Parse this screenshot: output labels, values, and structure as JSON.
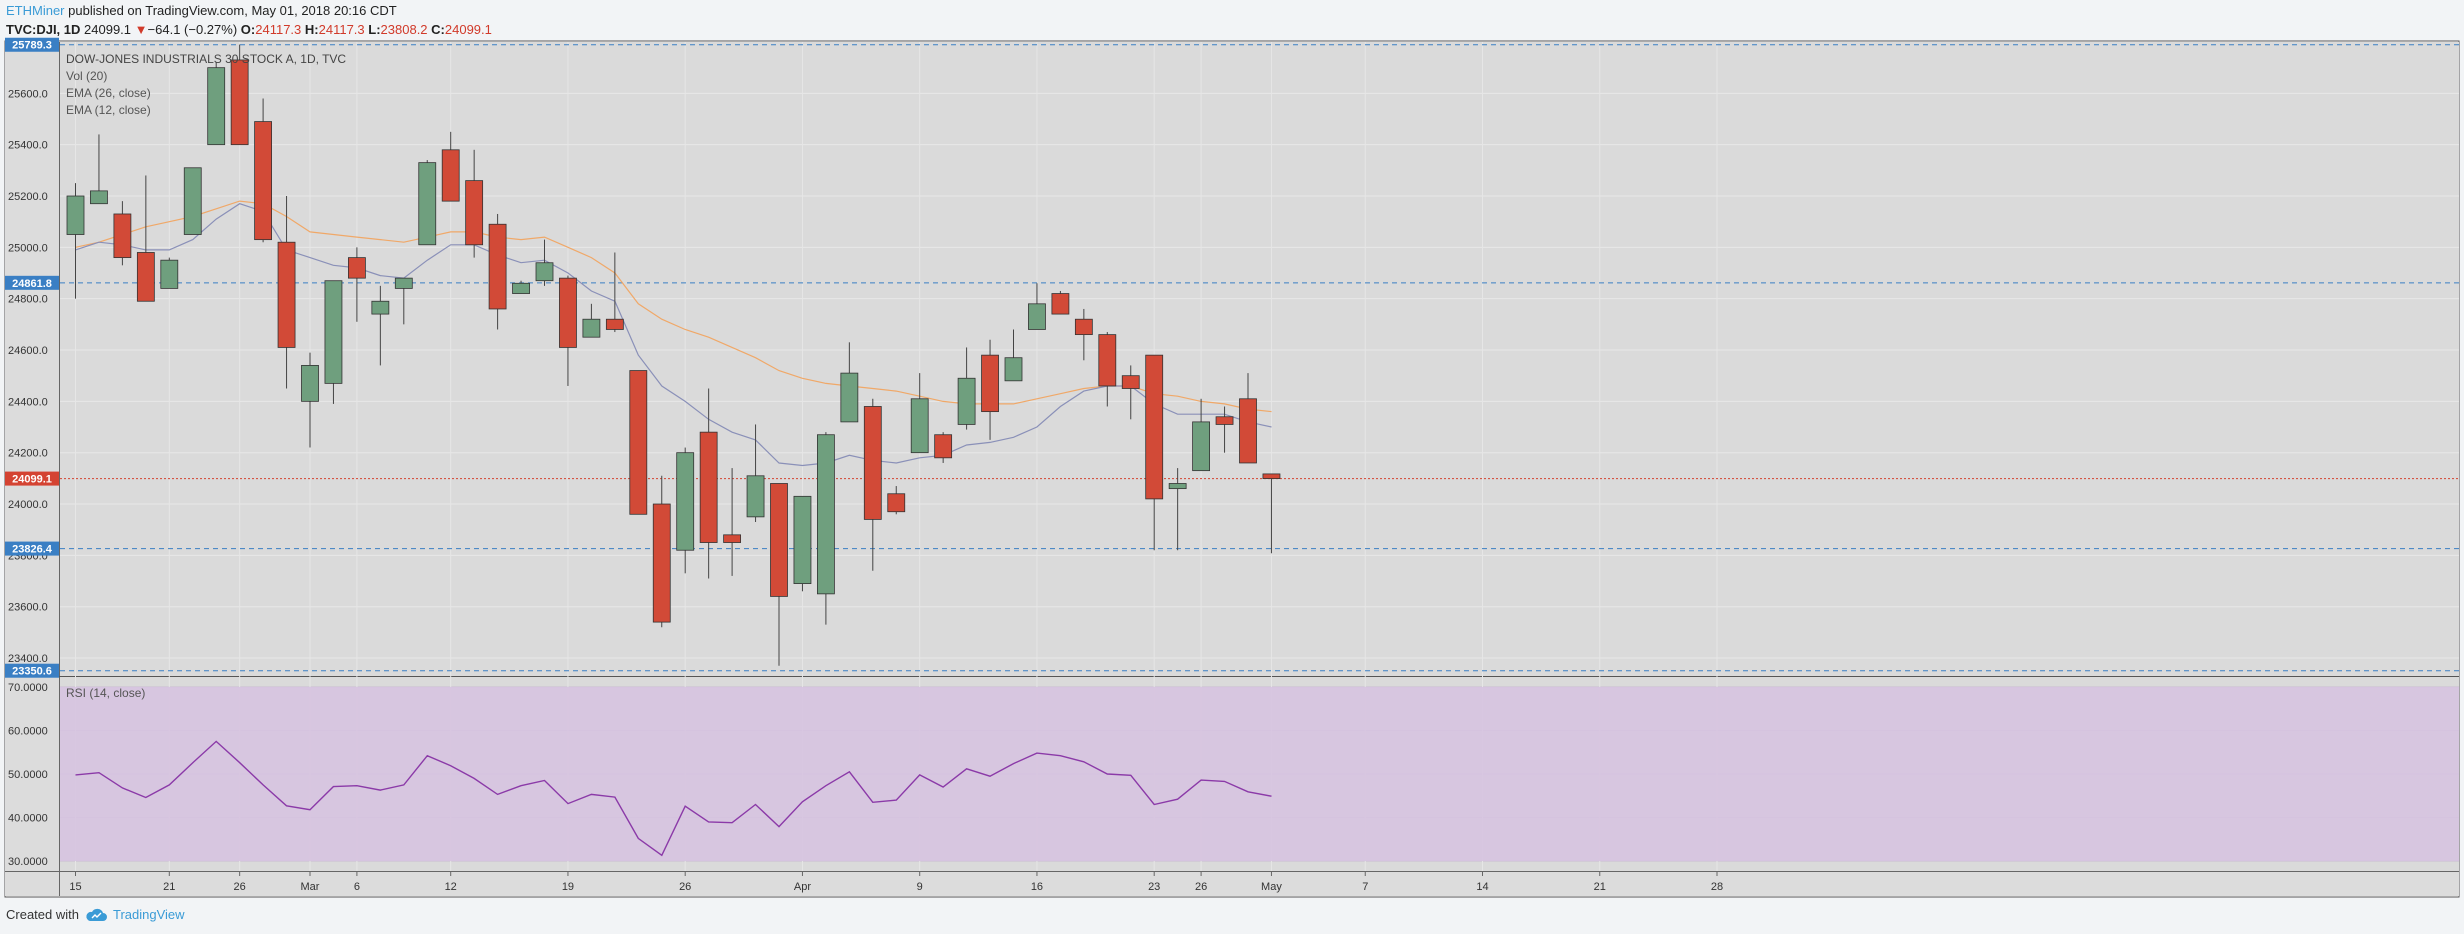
{
  "header": {
    "author": "ETHMiner",
    "published": "published on TradingView.com, May 01, 2018 20:16 CDT",
    "symbol": "TVC:DJI, 1D",
    "last": "24099.1",
    "arrow": "▼",
    "change": "−64.1 (−0.27%)",
    "o_label": "O:",
    "o_val": "24117.3",
    "h_label": "H:",
    "h_val": "24117.3",
    "l_label": "L:",
    "l_val": "23808.2",
    "c_label": "C:",
    "c_val": "24099.1"
  },
  "legend": {
    "title": "DOW-JONES INDUSTRIALS 30 STOCK A, 1D, TVC",
    "vol": "Vol (20)",
    "ema26": "EMA (26, close)",
    "ema12": "EMA (12, close)",
    "rsi": "RSI (14, close)"
  },
  "footer": {
    "created": "Created with",
    "brand": "TradingView"
  },
  "colors": {
    "up": "#6f9f7e",
    "down": "#d24a37",
    "ema26": "#f0a868",
    "ema12": "#8a90b8",
    "rsi_line": "#8b3aa8",
    "rsi_band": "#d6c3e0",
    "price_bg": "#dadada",
    "marker_blue": "#3a7fc4",
    "marker_red": "#d44332"
  },
  "chart_data": [
    {
      "type": "candlestick",
      "title": "DOW-JONES INDUSTRIALS 30 STOCK A, 1D, TVC",
      "ylim": [
        23330,
        25800
      ],
      "yticks": [
        "23400.0",
        "23600.0",
        "23800.0",
        "24000.0",
        "24200.0",
        "24400.0",
        "24600.0",
        "24800.0",
        "25000.0",
        "25200.0",
        "25400.0",
        "25600.0"
      ],
      "xticks": [
        "15",
        "21",
        "26",
        "Mar",
        "6",
        "12",
        "19",
        "26",
        "Apr",
        "9",
        "16",
        "23",
        "26",
        "May",
        "7",
        "14",
        "21",
        "28"
      ],
      "markers": [
        {
          "label": "25789.3",
          "value": 25789.3,
          "color": "blue"
        },
        {
          "label": "24861.8",
          "value": 24861.8,
          "color": "blue"
        },
        {
          "label": "24099.1",
          "value": 24099.1,
          "color": "red"
        },
        {
          "label": "23826.4",
          "value": 23826.4,
          "color": "blue"
        },
        {
          "label": "23350.6",
          "value": 23350.6,
          "color": "blue"
        }
      ],
      "candles": [
        {
          "o": 25050,
          "h": 25250,
          "l": 24800,
          "c": 25200
        },
        {
          "o": 25170,
          "h": 25440,
          "l": 25170,
          "c": 25220
        },
        {
          "o": 25130,
          "h": 25180,
          "l": 24930,
          "c": 24960
        },
        {
          "o": 24980,
          "h": 25280,
          "l": 24790,
          "c": 24790
        },
        {
          "o": 24840,
          "h": 24960,
          "l": 24840,
          "c": 24950
        },
        {
          "o": 25050,
          "h": 25310,
          "l": 25050,
          "c": 25310
        },
        {
          "o": 25400,
          "h": 25720,
          "l": 25400,
          "c": 25700
        },
        {
          "o": 25730,
          "h": 25790,
          "l": 25400,
          "c": 25400
        },
        {
          "o": 25490,
          "h": 25580,
          "l": 25020,
          "c": 25030
        },
        {
          "o": 25020,
          "h": 25200,
          "l": 24450,
          "c": 24610
        },
        {
          "o": 24400,
          "h": 24590,
          "l": 24220,
          "c": 24540
        },
        {
          "o": 24470,
          "h": 24870,
          "l": 24390,
          "c": 24870
        },
        {
          "o": 24960,
          "h": 25000,
          "l": 24710,
          "c": 24880
        },
        {
          "o": 24740,
          "h": 24850,
          "l": 24540,
          "c": 24790
        },
        {
          "o": 24840,
          "h": 24880,
          "l": 24700,
          "c": 24880
        },
        {
          "o": 25010,
          "h": 25340,
          "l": 25010,
          "c": 25330
        },
        {
          "o": 25380,
          "h": 25450,
          "l": 25180,
          "c": 25180
        },
        {
          "o": 25260,
          "h": 25380,
          "l": 24960,
          "c": 25010
        },
        {
          "o": 25090,
          "h": 25130,
          "l": 24680,
          "c": 24760
        },
        {
          "o": 24820,
          "h": 24870,
          "l": 24820,
          "c": 24860
        },
        {
          "o": 24870,
          "h": 25030,
          "l": 24850,
          "c": 24940
        },
        {
          "o": 24880,
          "h": 24890,
          "l": 24460,
          "c": 24610
        },
        {
          "o": 24650,
          "h": 24780,
          "l": 24650,
          "c": 24720
        },
        {
          "o": 24720,
          "h": 24980,
          "l": 24670,
          "c": 24680
        },
        {
          "o": 24520,
          "h": 24520,
          "l": 23960,
          "c": 23960
        },
        {
          "o": 24000,
          "h": 24110,
          "l": 23520,
          "c": 23540
        },
        {
          "o": 23820,
          "h": 24220,
          "l": 23730,
          "c": 24200
        },
        {
          "o": 24280,
          "h": 24450,
          "l": 23710,
          "c": 23850
        },
        {
          "o": 23880,
          "h": 24140,
          "l": 23720,
          "c": 23850
        },
        {
          "o": 23950,
          "h": 24310,
          "l": 23930,
          "c": 24110
        },
        {
          "o": 24080,
          "h": 24080,
          "l": 23370,
          "c": 23640
        },
        {
          "o": 23690,
          "h": 24030,
          "l": 23660,
          "c": 24030
        },
        {
          "o": 23650,
          "h": 24280,
          "l": 23530,
          "c": 24270
        },
        {
          "o": 24320,
          "h": 24630,
          "l": 24320,
          "c": 24510
        },
        {
          "o": 24380,
          "h": 24410,
          "l": 23740,
          "c": 23940
        },
        {
          "o": 24040,
          "h": 24070,
          "l": 23960,
          "c": 23970
        },
        {
          "o": 24200,
          "h": 24510,
          "l": 24200,
          "c": 24410
        },
        {
          "o": 24270,
          "h": 24280,
          "l": 24160,
          "c": 24180
        },
        {
          "o": 24310,
          "h": 24610,
          "l": 24290,
          "c": 24490
        },
        {
          "o": 24580,
          "h": 24640,
          "l": 24250,
          "c": 24360
        },
        {
          "o": 24480,
          "h": 24680,
          "l": 24480,
          "c": 24570
        },
        {
          "o": 24680,
          "h": 24860,
          "l": 24680,
          "c": 24780
        },
        {
          "o": 24820,
          "h": 24830,
          "l": 24740,
          "c": 24740
        },
        {
          "o": 24720,
          "h": 24760,
          "l": 24560,
          "c": 24660
        },
        {
          "o": 24660,
          "h": 24670,
          "l": 24380,
          "c": 24460
        },
        {
          "o": 24500,
          "h": 24540,
          "l": 24330,
          "c": 24450
        },
        {
          "o": 24580,
          "h": 24580,
          "l": 23820,
          "c": 24020
        },
        {
          "o": 24060,
          "h": 24140,
          "l": 23820,
          "c": 24080
        },
        {
          "o": 24130,
          "h": 24410,
          "l": 24130,
          "c": 24320
        },
        {
          "o": 24340,
          "h": 24380,
          "l": 24200,
          "c": 24310
        },
        {
          "o": 24410,
          "h": 24510,
          "l": 24160,
          "c": 24160
        },
        {
          "o": 24117.3,
          "h": 24117.3,
          "l": 23808.2,
          "c": 24099.1
        }
      ],
      "ema26": [
        25000,
        25020,
        25050,
        25080,
        25100,
        25120,
        25150,
        25180,
        25170,
        25120,
        25060,
        25050,
        25040,
        25030,
        25020,
        25040,
        25060,
        25060,
        25040,
        25030,
        25040,
        25000,
        24960,
        24900,
        24780,
        24720,
        24680,
        24650,
        24610,
        24570,
        24520,
        24490,
        24470,
        24460,
        24450,
        24440,
        24420,
        24400,
        24390,
        24390,
        24390,
        24410,
        24430,
        24450,
        24460,
        24460,
        24430,
        24420,
        24400,
        24390,
        24370,
        24360
      ],
      "ema12": [
        24990,
        25020,
        25010,
        24990,
        24990,
        25030,
        25110,
        25170,
        25140,
        24990,
        24960,
        24930,
        24920,
        24890,
        24880,
        24950,
        25010,
        25010,
        24970,
        24940,
        24950,
        24900,
        24830,
        24790,
        24580,
        24460,
        24400,
        24330,
        24280,
        24250,
        24160,
        24150,
        24160,
        24190,
        24170,
        24160,
        24180,
        24190,
        24230,
        24240,
        24260,
        24300,
        24380,
        24440,
        24460,
        24460,
        24390,
        24350,
        24350,
        24350,
        24320,
        24300
      ]
    },
    {
      "type": "line",
      "title": "RSI (14, close)",
      "ylim": [
        30,
        70
      ],
      "yticks": [
        "30.0000",
        "40.0000",
        "50.0000",
        "60.0000",
        "70.0000"
      ],
      "band": [
        30,
        70
      ],
      "values": [
        49.8,
        50.3,
        46.8,
        44.6,
        47.5,
        52.6,
        57.5,
        52.6,
        47.5,
        42.7,
        41.8,
        47.1,
        47.3,
        46.3,
        47.5,
        54.2,
        51.9,
        49.0,
        45.3,
        47.3,
        48.5,
        43.2,
        45.3,
        44.7,
        35.2,
        31.3,
        42.6,
        39.0,
        38.8,
        43.0,
        37.9,
        43.6,
        47.3,
        50.5,
        43.5,
        44.0,
        49.8,
        47.0,
        51.2,
        49.5,
        52.4,
        54.8,
        54.2,
        52.8,
        50.0,
        49.7,
        43.0,
        44.2,
        48.6,
        48.3,
        45.9,
        44.9
      ]
    }
  ]
}
